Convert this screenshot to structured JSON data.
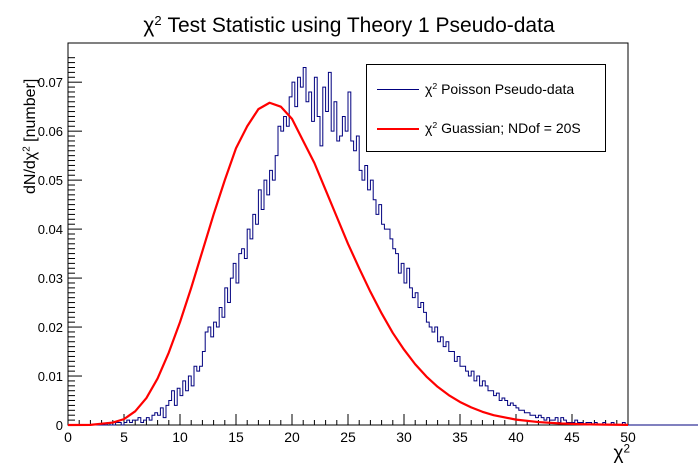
{
  "chart_data": {
    "type": "line",
    "title": "Test Statistic using Theory 1 Pseudo-data",
    "title_symbol": "χ",
    "title_sup": "2",
    "xlabel_symbol": "χ",
    "xlabel_sup": "2",
    "ylabel": "dN/dχ",
    "ylabel_sup": "2",
    "ylabel_unit": " [number]",
    "xlim": [
      0,
      50
    ],
    "ylim": [
      0,
      0.078
    ],
    "x_ticks": [
      0,
      5,
      10,
      15,
      20,
      25,
      30,
      35,
      40,
      45,
      50
    ],
    "x_tick_labels": [
      "0",
      "5",
      "10",
      "15",
      "20",
      "25",
      "30",
      "35",
      "40",
      "45",
      "50"
    ],
    "y_ticks": [
      0,
      0.01,
      0.02,
      0.03,
      0.04,
      0.05,
      0.06,
      0.07
    ],
    "y_tick_labels": [
      "0",
      "0.01",
      "0.02",
      "0.03",
      "0.04",
      "0.05",
      "0.06",
      "0.07"
    ],
    "grid": false,
    "legend_position": "top-right",
    "series": [
      {
        "name": "Poisson Pseudo-data",
        "name_symbol": "χ",
        "name_sup": "2",
        "kind": "histogram",
        "color": "#00007f",
        "bin_width": 0.25,
        "bin_start": 0,
        "values": [
          0,
          0,
          0,
          0,
          0,
          0,
          0,
          0,
          0,
          0,
          0,
          0,
          0,
          0,
          0.0005,
          0,
          0,
          0.0005,
          0.0005,
          0,
          0.0005,
          0.001,
          0.0005,
          0.001,
          0.001,
          0.0015,
          0.0005,
          0.001,
          0.0015,
          0.001,
          0.002,
          0.0025,
          0.002,
          0.0035,
          0.0015,
          0.004,
          0.005,
          0.007,
          0.004,
          0.0075,
          0.006,
          0.009,
          0.007,
          0.01,
          0.008,
          0.012,
          0.011,
          0.012,
          0.015,
          0.019,
          0.02,
          0.018,
          0.021,
          0.02,
          0.024,
          0.022,
          0.028,
          0.025,
          0.03,
          0.033,
          0.029,
          0.035,
          0.036,
          0.034,
          0.04,
          0.038,
          0.043,
          0.041,
          0.048,
          0.044,
          0.05,
          0.047,
          0.052,
          0.05,
          0.055,
          0.061,
          0.06,
          0.063,
          0.061,
          0.067,
          0.07,
          0.065,
          0.071,
          0.069,
          0.073,
          0.066,
          0.068,
          0.062,
          0.071,
          0.063,
          0.057,
          0.069,
          0.064,
          0.072,
          0.06,
          0.066,
          0.058,
          0.059,
          0.063,
          0.06,
          0.068,
          0.058,
          0.056,
          0.059,
          0.052,
          0.05,
          0.053,
          0.048,
          0.05,
          0.046,
          0.043,
          0.045,
          0.041,
          0.04,
          0.04,
          0.038,
          0.036,
          0.035,
          0.031,
          0.033,
          0.029,
          0.032,
          0.028,
          0.026,
          0.027,
          0.024,
          0.025,
          0.023,
          0.021,
          0.02,
          0.019,
          0.02,
          0.017,
          0.018,
          0.016,
          0.017,
          0.015,
          0.015,
          0.013,
          0.014,
          0.012,
          0.012,
          0.011,
          0.01,
          0.011,
          0.009,
          0.01,
          0.008,
          0.009,
          0.008,
          0.007,
          0.007,
          0.006,
          0.0065,
          0.005,
          0.0055,
          0.005,
          0.004,
          0.0045,
          0.004,
          0.0035,
          0.003,
          0.003,
          0.0025,
          0.0025,
          0.002,
          0.002,
          0.0015,
          0.002,
          0.0015,
          0.001,
          0.0015,
          0.001,
          0.001,
          0.0015,
          0.0005,
          0.0015,
          0.001,
          0.0005,
          0.0005,
          0.0005,
          0.001,
          0.0005,
          0.0005,
          0,
          0.0005,
          0.0005,
          0,
          0.0005,
          0,
          0,
          0.0005,
          0,
          0,
          0.0005,
          0,
          0,
          0,
          0.0005,
          0,
          0,
          0,
          0,
          0,
          0,
          0,
          0,
          0,
          0,
          0,
          0,
          0,
          0,
          0,
          0,
          0,
          0,
          0,
          0,
          0,
          0,
          0,
          0,
          0,
          0,
          0,
          0,
          0,
          0,
          0,
          0,
          0,
          0,
          0,
          0,
          0,
          0,
          0,
          0,
          0,
          0,
          0,
          0,
          0,
          0,
          0,
          0,
          0,
          0,
          0,
          0,
          0,
          0
        ]
      },
      {
        "name": "Guassian; NDof = 20S",
        "name_symbol": "χ",
        "name_sup": "2",
        "kind": "curve",
        "color": "#ff0000",
        "x": [
          0,
          2,
          4,
          5,
          6,
          7,
          8,
          9,
          10,
          11,
          12,
          13,
          14,
          15,
          16,
          17,
          18,
          19,
          20,
          21,
          22,
          23,
          24,
          25,
          26,
          27,
          28,
          29,
          30,
          31,
          32,
          33,
          34,
          35,
          36,
          37,
          38,
          40,
          42,
          44,
          46,
          48,
          50
        ],
        "values": [
          0,
          2e-05,
          0.0005,
          0.0012,
          0.0028,
          0.0055,
          0.0095,
          0.0148,
          0.021,
          0.028,
          0.0355,
          0.043,
          0.05,
          0.0565,
          0.061,
          0.0645,
          0.0658,
          0.065,
          0.0625,
          0.058,
          0.0535,
          0.048,
          0.0425,
          0.037,
          0.032,
          0.0272,
          0.0228,
          0.0188,
          0.0154,
          0.0124,
          0.0099,
          0.0078,
          0.0061,
          0.0047,
          0.0036,
          0.0027,
          0.002,
          0.0011,
          0.0006,
          0.0003,
          0.00015,
          7e-05,
          3e-05
        ]
      }
    ]
  }
}
